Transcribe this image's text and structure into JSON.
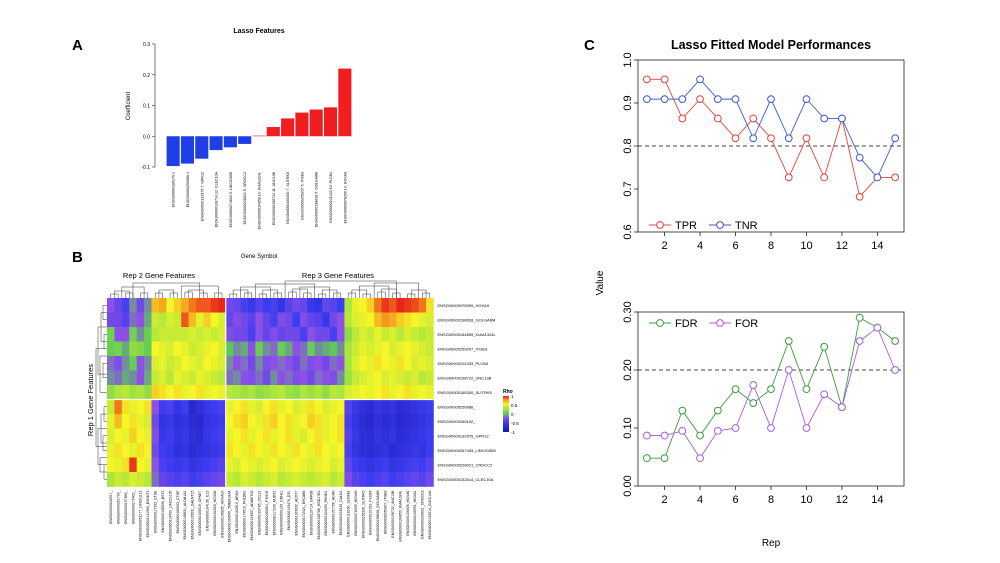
{
  "panels": {
    "a": "A",
    "b": "B",
    "c": "C"
  },
  "colors": {
    "negative_bar": "#1f3fe6",
    "positive_bar": "#f01e1e",
    "tpr": "#e8423c",
    "tnr": "#3c59d8",
    "fdr": "#3f9a3f",
    "for": "#a85ce0",
    "threshold": "#444444"
  },
  "chart_data": [
    {
      "id": "lasso-features",
      "type": "bar",
      "title": "Lasso Features",
      "xlabel": "Gene Symbol",
      "ylabel": "Coefficient",
      "ylim": [
        -0.1,
        0.3
      ],
      "yticks": [
        "-0.1",
        "0.0",
        "0.1",
        "0.2",
        "0.3"
      ],
      "categories": [
        "ENSG00000180176.1",
        "ENSG00000250986.4",
        "ENSG00000132975.7: GPR12",
        "ENSG00000128714.12: CLEC10A",
        "ENSG00000274833.9: LINC01658",
        "ENSG00000228021.5: CROCC2",
        "ENSG00000164659.13: KIAA1324L",
        "ENSG00000198722.11: UNC13B",
        "ENSG00000165300.7: SLITRK5",
        "ENSG00000259207.5: ITGB3",
        "ENSG00000198628.5: GOLGA8M",
        "ENSG00000101333.15: PLCB4",
        "ENSG00000078399.14: HOXA9"
      ],
      "values": [
        -0.097,
        -0.089,
        -0.073,
        -0.045,
        -0.036,
        -0.025,
        0.002,
        0.03,
        0.058,
        0.077,
        0.087,
        0.094,
        0.22
      ]
    },
    {
      "id": "heatmap",
      "type": "heatmap",
      "col_group_labels": [
        "Rep 2 Gene Features",
        "Rep 3 Gene Features"
      ],
      "row_group_label": "Rep 1 Gene Features",
      "legend_title": "Rho",
      "legend_ticks": [
        "1",
        "0.5",
        "0",
        "-0.5",
        "-1"
      ],
      "rows": [
        "ENSG00000078399_HOXA9",
        "ENSG00000198628_GOLGA8M",
        "ENSG00000164659_KIAA1324L",
        "ENSG00000259207_ITGB3",
        "ENSG00000101333_PLCB4",
        "ENSG00000198722_UNC13B",
        "ENSG00000165300_SLITRK5",
        "ENSG00000250986_",
        "ENSG00000260192_",
        "ENSG00000132975_GPR12",
        "ENSG00000267453_LINC01655",
        "ENSG00000228021_CROCC2",
        "ENSG00000132514_CLEC10A"
      ],
      "row_display": [
        "ENSG00000078399_HOXA9",
        "ENSG00000198628_GOLGA8M",
        "ENSG00000164659_KIAA1324L",
        "ENSG00000259207_ITGB3",
        "ENSG00000101333_PLCB4",
        "ENSG00000198722_UNC13B",
        "ENSG00000165300_SLITRK5",
        "ENSG00000250986_",
        "ENSG00000260192_",
        "ENSG00000132975_GPR12",
        "ENSG00000267453_LINC01655",
        "ENSG00000228021_CROCC2",
        "ENSG00000132514_CLEC10A"
      ],
      "columns": [
        "ENSG00000242517_",
        "ENSG00000261799_",
        "ENSG00000197892_",
        "ENSG00000176402_",
        "ENSG00000262177_LINC01119",
        "ENSG00000141965_B3GNT3",
        "ENSG00000117292_CTSE",
        "ENSG00000135535_BST2",
        "ENSG00000214900_LINC01135",
        "ENSG00000166342_CTGF",
        "ENSG00000148831_ALDH1A1",
        "ENSG00000135631_GALNT15",
        "ENSG00000105519_CPNE7",
        "ENSG00000164136_IL15",
        "ENSG00000162526_HOXA5",
        "ENSG00000198835_HOXA10",
        "ENSG00000164645_TMEM184A",
        "ENSG00000162819_NRG4",
        "ENSG00000174516_PHLDB1",
        "ENSG00000134057_ADAMTS2",
        "ENSG00000163785_CCL21",
        "ENSG00000160801_PTH1R",
        "ENSG00000117226_NUDT1",
        "ENSG00000091129_CDH11",
        "ENSG00000143476_DTL",
        "ENSG00000163032_ACOT7",
        "ENSG00000172421_EFCAB6",
        "ENSG00000119714_GPR68",
        "ENSG00000108786_HSD17B1",
        "ENSG00000104490_PKHD1",
        "ENSG00000157766_ACAN",
        "ENSG00000154545_CALN1",
        "ENSG00000118160_SLC8A2",
        "ENSG00000078399_HOXA9",
        "ENSG00000165300_SLITRK5",
        "ENSG00000101333_PLCB4",
        "ENSG00000198628_GOLGA8M",
        "ENSG00000259207_ITGB3",
        "ENSG00000198722_UNC13B",
        "ENSG00000164659_KIAA1324L",
        "ENSG00000106006_HOXA6",
        "ENSG00000105991_HOXA1",
        "ENSG00000228021_CROCC2",
        "ENSG00000132514_CLEC10A"
      ],
      "values": [
        [
          -0.2,
          -0.35,
          -0.45,
          -0.1,
          -0.3,
          -0.1,
          0.7,
          0.75,
          0.55,
          0.65,
          0.75,
          0.85,
          0.9,
          0.9,
          0.95,
          0.98,
          -0.3,
          -0.35,
          -0.45,
          -0.55,
          -0.4,
          -0.5,
          -0.45,
          -0.6,
          -0.4,
          -0.3,
          -0.35,
          -0.55,
          -0.6,
          -0.35,
          -0.4,
          -0.5,
          0.3,
          0.5,
          0.55,
          0.65,
          0.85,
          0.95,
          0.9,
          0.98,
          0.95,
          0.92,
          0.85,
          0.6
        ],
        [
          -0.3,
          -0.3,
          -0.4,
          -0.15,
          -0.2,
          -0.05,
          0.4,
          0.35,
          0.45,
          0.4,
          0.9,
          0.7,
          0.5,
          0.65,
          0.55,
          0.45,
          -0.35,
          -0.25,
          -0.3,
          -0.4,
          -0.2,
          -0.35,
          -0.45,
          -0.25,
          -0.3,
          -0.5,
          -0.25,
          -0.35,
          -0.4,
          -0.55,
          -0.3,
          -0.2,
          0.35,
          0.45,
          0.5,
          0.55,
          0.7,
          0.8,
          0.75,
          0.65,
          0.6,
          0.55,
          0.5,
          0.45
        ],
        [
          0.1,
          -0.2,
          -0.2,
          0.1,
          -0.1,
          0.05,
          0.35,
          0.4,
          0.4,
          0.4,
          0.4,
          0.45,
          0.4,
          0.45,
          0.4,
          0.45,
          -0.25,
          -0.3,
          -0.3,
          -0.45,
          -0.2,
          -0.35,
          -0.25,
          -0.35,
          -0.3,
          -0.3,
          -0.45,
          -0.2,
          -0.3,
          -0.3,
          -0.45,
          -0.2,
          0.2,
          0.35,
          0.45,
          0.4,
          0.5,
          0.4,
          0.45,
          0.35,
          0.45,
          0.4,
          0.35,
          0.4
        ],
        [
          0.05,
          0.1,
          -0.05,
          0.2,
          0.15,
          0.05,
          0.55,
          0.5,
          0.45,
          0.55,
          0.5,
          0.4,
          0.45,
          0.5,
          0.55,
          0.45,
          0.0,
          -0.1,
          -0.05,
          -0.2,
          0.05,
          -0.1,
          -0.15,
          0.05,
          -0.05,
          -0.2,
          -0.15,
          0.05,
          -0.1,
          -0.05,
          0.0,
          -0.1,
          0.3,
          0.4,
          0.5,
          0.45,
          0.5,
          0.55,
          0.45,
          0.5,
          0.55,
          0.5,
          0.45,
          0.4
        ],
        [
          -0.15,
          -0.25,
          -0.1,
          0.05,
          -0.2,
          -0.1,
          0.45,
          0.5,
          0.4,
          0.45,
          0.55,
          0.5,
          0.45,
          0.55,
          0.5,
          0.45,
          -0.1,
          -0.2,
          -0.15,
          -0.3,
          -0.1,
          -0.25,
          -0.2,
          -0.15,
          -0.2,
          -0.3,
          -0.15,
          -0.25,
          -0.2,
          -0.3,
          -0.15,
          -0.2,
          0.3,
          0.45,
          0.55,
          0.5,
          0.6,
          0.55,
          0.5,
          0.6,
          0.55,
          0.45,
          0.5,
          0.45
        ],
        [
          -0.1,
          -0.15,
          -0.05,
          -0.1,
          -0.2,
          -0.05,
          0.4,
          0.45,
          0.35,
          0.5,
          0.45,
          0.4,
          0.5,
          0.45,
          0.4,
          0.35,
          -0.15,
          -0.1,
          -0.2,
          -0.25,
          -0.15,
          -0.3,
          -0.1,
          -0.2,
          -0.15,
          -0.25,
          -0.2,
          -0.3,
          -0.15,
          -0.2,
          -0.25,
          -0.1,
          0.25,
          0.4,
          0.45,
          0.5,
          0.55,
          0.45,
          0.5,
          0.45,
          0.4,
          0.45,
          0.35,
          0.4
        ],
        [
          0.2,
          0.3,
          0.35,
          0.25,
          0.3,
          0.2,
          0.65,
          0.6,
          0.55,
          0.6,
          0.5,
          0.55,
          0.6,
          0.5,
          0.55,
          0.5,
          0.35,
          0.3,
          0.25,
          0.3,
          0.2,
          0.25,
          0.3,
          0.35,
          0.25,
          0.2,
          0.3,
          0.25,
          0.3,
          0.2,
          0.35,
          0.3,
          0.45,
          0.5,
          0.55,
          0.5,
          0.55,
          0.6,
          0.5,
          0.55,
          0.6,
          0.5,
          0.55,
          0.5
        ],
        [
          0.4,
          0.85,
          0.6,
          0.5,
          0.55,
          0.6,
          -0.2,
          -0.5,
          -0.45,
          -0.6,
          -0.5,
          -0.75,
          -0.65,
          -0.55,
          -0.5,
          -0.45,
          0.5,
          0.55,
          0.6,
          0.5,
          0.45,
          0.55,
          0.6,
          0.5,
          0.55,
          0.45,
          0.5,
          0.6,
          0.55,
          0.45,
          0.5,
          0.55,
          -0.4,
          -0.55,
          -0.65,
          -0.7,
          -0.6,
          -0.65,
          -0.6,
          -0.7,
          -0.65,
          -0.6,
          -0.55,
          -0.5
        ],
        [
          0.5,
          0.7,
          0.55,
          0.6,
          0.5,
          0.45,
          -0.3,
          -0.6,
          -0.55,
          -0.65,
          -0.6,
          -0.7,
          -0.75,
          -0.6,
          -0.55,
          -0.5,
          0.55,
          0.6,
          0.65,
          0.55,
          0.5,
          0.6,
          0.65,
          0.55,
          0.6,
          0.5,
          0.55,
          0.65,
          0.6,
          0.5,
          0.55,
          0.6,
          -0.45,
          -0.6,
          -0.7,
          -0.75,
          -0.65,
          -0.7,
          -0.65,
          -0.75,
          -0.7,
          -0.65,
          -0.6,
          -0.55
        ],
        [
          0.45,
          0.55,
          0.5,
          0.65,
          0.55,
          0.5,
          -0.25,
          -0.55,
          -0.5,
          -0.6,
          -0.55,
          -0.65,
          -0.7,
          -0.55,
          -0.5,
          -0.45,
          0.5,
          0.55,
          0.6,
          0.5,
          0.55,
          0.6,
          0.5,
          0.55,
          0.6,
          0.5,
          0.45,
          0.55,
          0.6,
          0.5,
          0.55,
          0.6,
          -0.4,
          -0.55,
          -0.65,
          -0.7,
          -0.6,
          -0.65,
          -0.6,
          -0.7,
          -0.65,
          -0.6,
          -0.55,
          -0.5
        ],
        [
          0.5,
          0.6,
          0.55,
          0.5,
          0.6,
          0.55,
          -0.3,
          -0.5,
          -0.55,
          -0.65,
          -0.6,
          -0.7,
          -0.65,
          -0.6,
          -0.55,
          -0.5,
          0.6,
          0.55,
          0.5,
          0.6,
          0.55,
          0.5,
          0.6,
          0.55,
          0.5,
          0.6,
          0.55,
          0.5,
          0.6,
          0.55,
          0.5,
          0.55,
          -0.45,
          -0.6,
          -0.65,
          -0.7,
          -0.65,
          -0.6,
          -0.7,
          -0.65,
          -0.6,
          -0.55,
          -0.6,
          -0.5
        ],
        [
          0.55,
          0.5,
          0.6,
          0.95,
          0.55,
          0.5,
          -0.2,
          -0.45,
          -0.5,
          -0.55,
          -0.5,
          -0.6,
          -0.55,
          -0.5,
          -0.45,
          -0.4,
          0.5,
          0.45,
          0.55,
          0.5,
          0.45,
          0.5,
          0.55,
          0.45,
          0.5,
          0.55,
          0.5,
          0.45,
          0.5,
          0.55,
          0.45,
          0.5,
          -0.35,
          -0.5,
          -0.55,
          -0.6,
          -0.55,
          -0.5,
          -0.6,
          -0.55,
          -0.5,
          -0.45,
          -0.5,
          -0.4
        ],
        [
          0.3,
          0.4,
          0.35,
          0.45,
          0.4,
          0.35,
          -0.15,
          -0.35,
          -0.4,
          -0.45,
          -0.4,
          -0.5,
          -0.45,
          -0.4,
          -0.35,
          -0.3,
          0.4,
          0.35,
          0.45,
          0.4,
          0.35,
          0.4,
          0.45,
          0.35,
          0.4,
          0.45,
          0.4,
          0.35,
          0.4,
          0.45,
          0.35,
          0.4,
          -0.25,
          -0.4,
          -0.45,
          -0.5,
          -0.45,
          -0.4,
          -0.5,
          -0.45,
          -0.4,
          -0.35,
          -0.4,
          -0.3
        ]
      ]
    },
    {
      "id": "tpr-tnr",
      "type": "line",
      "title": "Lasso Fitted Model Performances",
      "ylim": [
        0.6,
        1.0
      ],
      "yticks": [
        "0.6",
        "0.7",
        "0.8",
        "0.9",
        "1.0"
      ],
      "xticks": [
        "2",
        "4",
        "6",
        "8",
        "10",
        "12",
        "14"
      ],
      "xlim": [
        0.5,
        15.5
      ],
      "threshold": 0.8,
      "x": [
        1,
        2,
        3,
        4,
        5,
        6,
        7,
        8,
        9,
        10,
        11,
        12,
        13,
        14,
        15
      ],
      "series": [
        {
          "name": "TPR",
          "values": [
            0.955,
            0.955,
            0.864,
            0.909,
            0.864,
            0.818,
            0.864,
            0.818,
            0.727,
            0.818,
            0.727,
            0.864,
            0.682,
            0.727,
            0.727
          ]
        },
        {
          "name": "TNR",
          "values": [
            0.909,
            0.909,
            0.909,
            0.955,
            0.909,
            0.909,
            0.818,
            0.909,
            0.818,
            0.909,
            0.864,
            0.864,
            0.773,
            0.727,
            0.818
          ]
        }
      ]
    },
    {
      "id": "fdr-for",
      "type": "line",
      "ylabel": "Value",
      "xlabel": "Rep",
      "ylim": [
        0.0,
        0.3
      ],
      "yticks": [
        "0.00",
        "0.10",
        "0.20",
        "0.30"
      ],
      "xticks": [
        "2",
        "4",
        "6",
        "8",
        "10",
        "12",
        "14"
      ],
      "xlim": [
        0.5,
        15.5
      ],
      "threshold": 0.2,
      "x": [
        1,
        2,
        3,
        4,
        5,
        6,
        7,
        8,
        9,
        10,
        11,
        12,
        13,
        14,
        15
      ],
      "series": [
        {
          "name": "FDR",
          "values": [
            0.048,
            0.048,
            0.13,
            0.087,
            0.13,
            0.167,
            0.143,
            0.167,
            0.25,
            0.167,
            0.24,
            0.136,
            0.29,
            0.273,
            0.25
          ]
        },
        {
          "name": "FOR",
          "values": [
            0.087,
            0.087,
            0.095,
            0.048,
            0.095,
            0.1,
            0.174,
            0.1,
            0.2,
            0.1,
            0.158,
            0.136,
            0.25,
            0.273,
            0.2
          ]
        }
      ]
    }
  ]
}
